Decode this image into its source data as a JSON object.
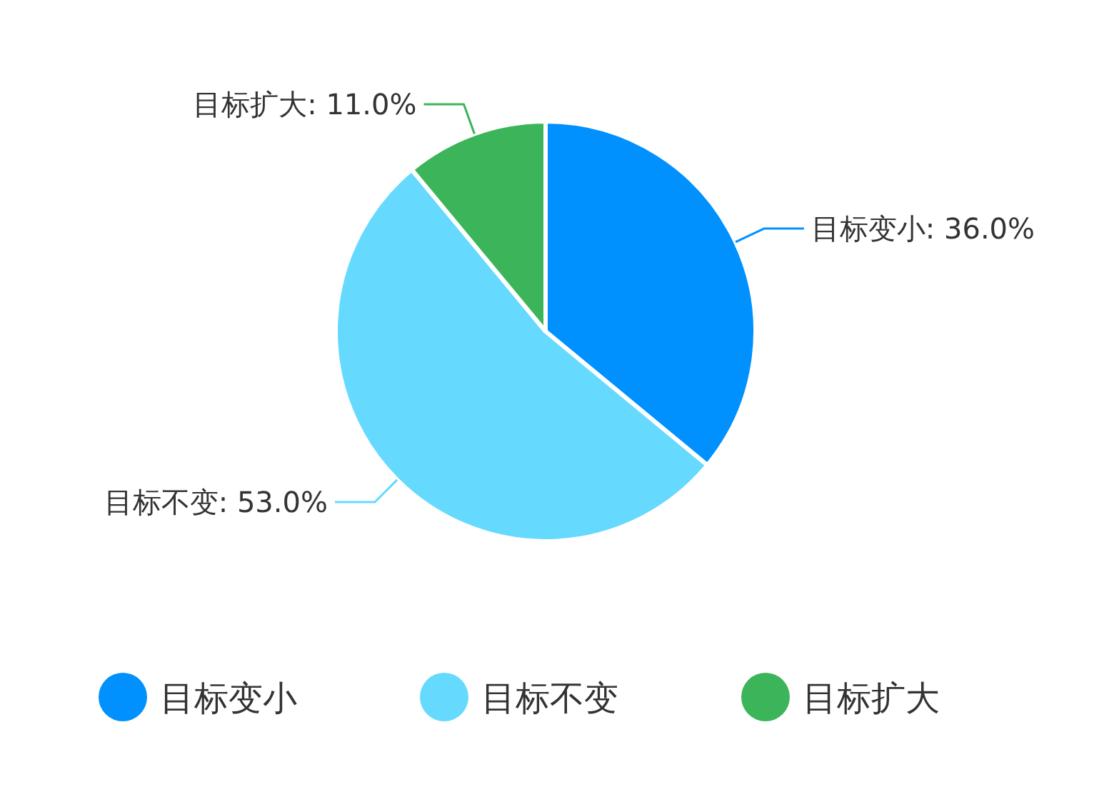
{
  "chart_data": {
    "type": "pie",
    "categories": [
      "目标变小",
      "目标不变",
      "目标扩大"
    ],
    "values": [
      36,
      53,
      11
    ],
    "colors": [
      "#0091ff",
      "#66d9ff",
      "#3cb55a"
    ],
    "value_labels": [
      "目标变小: 36.0%",
      "目标不变: 53.0%",
      "目标扩大: 11.0%"
    ],
    "legend": "bottom"
  }
}
